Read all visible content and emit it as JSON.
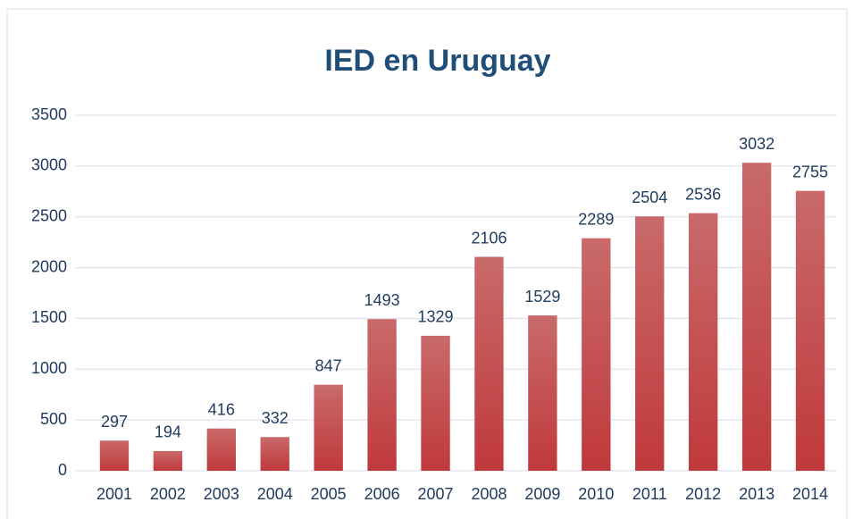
{
  "chart_data": {
    "type": "bar",
    "title": "IED en Uruguay",
    "categories": [
      "2001",
      "2002",
      "2003",
      "2004",
      "2005",
      "2006",
      "2007",
      "2008",
      "2009",
      "2010",
      "2011",
      "2012",
      "2013",
      "2014"
    ],
    "values": [
      297,
      194,
      416,
      332,
      847,
      1493,
      1329,
      2106,
      1529,
      2289,
      2504,
      2536,
      3032,
      2755
    ],
    "color": "#c0393b",
    "ylim": [
      0,
      3500
    ],
    "yticks": [
      0,
      500,
      1000,
      1500,
      2000,
      2500,
      3000,
      3500
    ],
    "grid": true
  }
}
